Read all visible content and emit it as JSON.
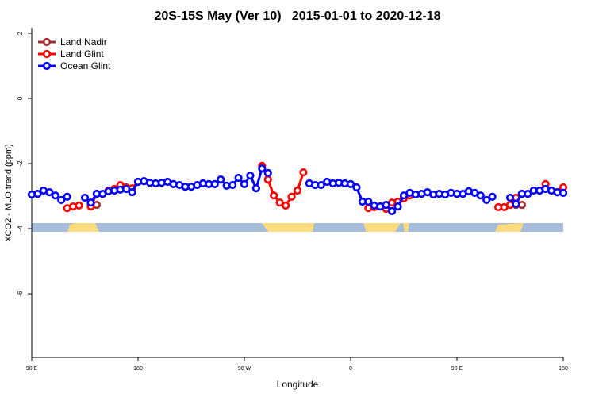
{
  "chart_data": {
    "type": "line",
    "title": "20S-15S May (Ver 10)   2015-01-01 to 2020-12-18",
    "x_label": "Longitude",
    "y_label": "XCO2 - MLO trend (ppm)",
    "xlim": [
      90,
      540
    ],
    "ylim": [
      -7.95,
      2.17
    ],
    "xticks": [
      {
        "value": 90,
        "label": "90 E"
      },
      180,
      {
        "value": 270,
        "label": "90 W"
      },
      {
        "value": 360,
        "label": "0"
      },
      {
        "value": 450,
        "label": "90 E"
      },
      {
        "value": 540,
        "label": "180"
      }
    ],
    "yticks": [
      2,
      0,
      -2,
      -4,
      -6
    ],
    "legend": "top-left",
    "x": [
      90,
      95,
      100,
      105,
      110,
      115,
      120,
      125,
      130,
      135,
      140,
      145,
      150,
      155,
      160,
      165,
      170,
      175,
      180,
      185,
      190,
      195,
      200,
      205,
      210,
      215,
      220,
      225,
      230,
      235,
      240,
      245,
      250,
      255,
      260,
      265,
      270,
      275,
      280,
      285,
      290,
      295,
      300,
      305,
      310,
      315,
      320,
      325,
      330,
      335,
      340,
      345,
      350,
      355,
      360,
      365,
      370,
      375,
      380,
      385,
      390,
      395,
      400,
      405,
      410,
      415,
      420,
      425,
      430,
      435,
      440,
      445,
      450,
      455,
      460,
      465,
      470,
      475,
      480,
      485,
      490,
      495,
      500,
      505,
      510,
      515,
      520,
      525,
      530,
      535,
      540
    ],
    "series": [
      {
        "name": "Land Nadir",
        "color": "#a52a2a",
        "values": [
          null,
          null,
          null,
          null,
          null,
          null,
          null,
          null,
          null,
          null,
          -3.29,
          -3.27,
          null,
          null,
          null,
          null,
          null,
          null,
          null,
          null,
          null,
          null,
          null,
          null,
          null,
          null,
          null,
          null,
          null,
          null,
          null,
          null,
          null,
          null,
          null,
          null,
          null,
          null,
          null,
          null,
          null,
          null,
          null,
          null,
          null,
          null,
          null,
          null,
          null,
          null,
          null,
          null,
          null,
          null,
          null,
          null,
          null,
          null,
          null,
          null,
          null,
          null,
          null,
          null,
          null,
          null,
          null,
          null,
          null,
          null,
          null,
          null,
          null,
          null,
          null,
          null,
          null,
          null,
          null,
          null,
          null,
          null,
          -3.27,
          -3.27,
          null,
          null,
          null,
          null,
          null,
          null,
          null
        ]
      },
      {
        "name": "Land Glint",
        "color": "#ff0000",
        "values": [
          null,
          null,
          null,
          null,
          null,
          null,
          -3.37,
          -3.32,
          -3.29,
          null,
          -3.32,
          -2.93,
          null,
          -2.83,
          -2.78,
          -2.66,
          -2.73,
          -2.76,
          -2.56,
          null,
          null,
          null,
          null,
          null,
          null,
          null,
          null,
          null,
          null,
          null,
          null,
          null,
          null,
          null,
          null,
          null,
          null,
          null,
          null,
          -2.07,
          -2.49,
          -2.98,
          -3.2,
          -3.29,
          -3.02,
          -2.83,
          -2.27,
          null,
          null,
          null,
          null,
          null,
          null,
          null,
          null,
          null,
          null,
          -3.37,
          -3.34,
          -3.32,
          -3.39,
          -3.2,
          -3.17,
          -3.07,
          -2.98,
          -2.95,
          null,
          null,
          null,
          null,
          null,
          null,
          null,
          null,
          null,
          null,
          null,
          null,
          null,
          -3.34,
          -3.34,
          -3.27,
          -3.05,
          -2.93,
          null,
          null,
          -2.83,
          -2.63,
          -2.83,
          -2.88,
          -2.73
        ]
      },
      {
        "name": "Ocean Glint",
        "color": "#0000ff",
        "values": [
          -2.95,
          -2.93,
          -2.83,
          -2.88,
          -2.98,
          -3.12,
          -3.02,
          null,
          null,
          -3.05,
          -3.2,
          -2.93,
          -2.93,
          -2.85,
          -2.83,
          -2.8,
          -2.78,
          -2.88,
          -2.56,
          -2.54,
          -2.59,
          -2.61,
          -2.59,
          -2.56,
          -2.63,
          -2.66,
          -2.71,
          -2.71,
          -2.66,
          -2.61,
          -2.63,
          -2.63,
          -2.49,
          -2.68,
          -2.66,
          -2.44,
          -2.63,
          -2.37,
          -2.76,
          -2.15,
          -2.29,
          null,
          null,
          null,
          null,
          null,
          null,
          -2.61,
          -2.66,
          -2.66,
          -2.56,
          -2.61,
          -2.59,
          -2.61,
          -2.63,
          -2.73,
          -3.17,
          -3.17,
          -3.29,
          -3.32,
          -3.27,
          -3.46,
          -3.32,
          -2.98,
          -2.9,
          -2.95,
          -2.93,
          -2.88,
          -2.95,
          -2.93,
          -2.95,
          -2.9,
          -2.93,
          -2.93,
          -2.85,
          -2.9,
          -2.98,
          -3.12,
          -3.02,
          null,
          null,
          -3.05,
          -3.24,
          -2.93,
          -2.93,
          -2.83,
          -2.83,
          -2.78,
          -2.83,
          -2.88,
          -2.9
        ]
      }
    ]
  }
}
